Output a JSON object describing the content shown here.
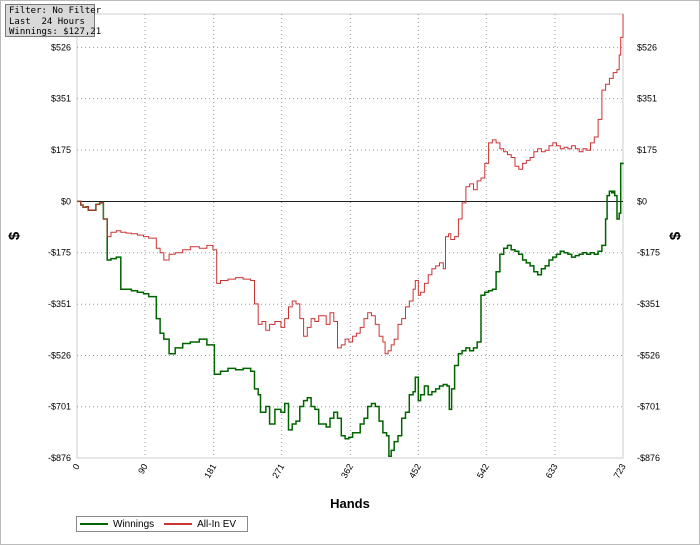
{
  "filter_box": {
    "line1": "Filter: No Filter",
    "line2": "Last  24 Hours",
    "line3": "Winnings: $127,21"
  },
  "chart_data": {
    "type": "line",
    "xlabel": "Hands",
    "ylabel": "$",
    "ylabel_right": "$",
    "xlim": [
      0,
      723
    ],
    "ylim": [
      -876,
      640
    ],
    "x_ticks": [
      0,
      90,
      181,
      271,
      362,
      452,
      542,
      633,
      723
    ],
    "y_ticks": [
      526,
      351,
      175,
      0,
      -175,
      -351,
      -526,
      -701,
      -876
    ],
    "y_tick_labels": [
      "$526",
      "$351",
      "$175",
      "$0",
      "-$175",
      "-$351",
      "-$526",
      "-$701",
      "-$876"
    ],
    "grid": true,
    "zero_line": true,
    "legend_position": "bottom-left",
    "series": [
      {
        "name": "Winnings",
        "color": "#006400",
        "points": [
          [
            0,
            0
          ],
          [
            5,
            -12
          ],
          [
            8,
            -20
          ],
          [
            12,
            -18
          ],
          [
            15,
            -30
          ],
          [
            20,
            -30
          ],
          [
            25,
            -10
          ],
          [
            30,
            -5
          ],
          [
            35,
            -60
          ],
          [
            40,
            -200
          ],
          [
            45,
            -195
          ],
          [
            52,
            -190
          ],
          [
            58,
            -300
          ],
          [
            65,
            -300
          ],
          [
            72,
            -305
          ],
          [
            80,
            -310
          ],
          [
            88,
            -315
          ],
          [
            95,
            -325
          ],
          [
            105,
            -400
          ],
          [
            110,
            -450
          ],
          [
            115,
            -470
          ],
          [
            122,
            -520
          ],
          [
            130,
            -500
          ],
          [
            140,
            -485
          ],
          [
            150,
            -480
          ],
          [
            162,
            -470
          ],
          [
            172,
            -490
          ],
          [
            182,
            -590
          ],
          [
            190,
            -580
          ],
          [
            200,
            -570
          ],
          [
            210,
            -575
          ],
          [
            220,
            -570
          ],
          [
            230,
            -580
          ],
          [
            235,
            -640
          ],
          [
            240,
            -660
          ],
          [
            243,
            -720
          ],
          [
            250,
            -700
          ],
          [
            255,
            -760
          ],
          [
            262,
            -710
          ],
          [
            270,
            -720
          ],
          [
            275,
            -690
          ],
          [
            280,
            -780
          ],
          [
            285,
            -760
          ],
          [
            290,
            -750
          ],
          [
            295,
            -700
          ],
          [
            300,
            -680
          ],
          [
            305,
            -670
          ],
          [
            310,
            -700
          ],
          [
            315,
            -710
          ],
          [
            320,
            -760
          ],
          [
            330,
            -770
          ],
          [
            335,
            -740
          ],
          [
            340,
            -720
          ],
          [
            345,
            -740
          ],
          [
            350,
            -800
          ],
          [
            355,
            -810
          ],
          [
            360,
            -805
          ],
          [
            365,
            -790
          ],
          [
            370,
            -790
          ],
          [
            375,
            -760
          ],
          [
            380,
            -740
          ],
          [
            385,
            -700
          ],
          [
            390,
            -690
          ],
          [
            395,
            -700
          ],
          [
            400,
            -750
          ],
          [
            405,
            -790
          ],
          [
            410,
            -800
          ],
          [
            413,
            -870
          ],
          [
            416,
            -850
          ],
          [
            420,
            -820
          ],
          [
            425,
            -800
          ],
          [
            430,
            -740
          ],
          [
            435,
            -720
          ],
          [
            440,
            -660
          ],
          [
            445,
            -650
          ],
          [
            448,
            -600
          ],
          [
            452,
            -680
          ],
          [
            455,
            -660
          ],
          [
            460,
            -630
          ],
          [
            465,
            -660
          ],
          [
            470,
            -650
          ],
          [
            475,
            -640
          ],
          [
            480,
            -630
          ],
          [
            485,
            -625
          ],
          [
            490,
            -630
          ],
          [
            493,
            -710
          ],
          [
            496,
            -640
          ],
          [
            500,
            -560
          ],
          [
            505,
            -520
          ],
          [
            510,
            -510
          ],
          [
            515,
            -500
          ],
          [
            520,
            -510
          ],
          [
            525,
            -500
          ],
          [
            530,
            -480
          ],
          [
            535,
            -320
          ],
          [
            540,
            -310
          ],
          [
            545,
            -305
          ],
          [
            550,
            -300
          ],
          [
            555,
            -240
          ],
          [
            560,
            -180
          ],
          [
            565,
            -160
          ],
          [
            570,
            -150
          ],
          [
            575,
            -165
          ],
          [
            580,
            -170
          ],
          [
            585,
            -180
          ],
          [
            590,
            -200
          ],
          [
            595,
            -210
          ],
          [
            600,
            -220
          ],
          [
            605,
            -240
          ],
          [
            610,
            -250
          ],
          [
            615,
            -230
          ],
          [
            620,
            -220
          ],
          [
            625,
            -200
          ],
          [
            630,
            -190
          ],
          [
            635,
            -180
          ],
          [
            640,
            -170
          ],
          [
            645,
            -175
          ],
          [
            650,
            -180
          ],
          [
            655,
            -190
          ],
          [
            660,
            -185
          ],
          [
            665,
            -180
          ],
          [
            670,
            -175
          ],
          [
            675,
            -180
          ],
          [
            680,
            -175
          ],
          [
            685,
            -180
          ],
          [
            690,
            -170
          ],
          [
            695,
            -150
          ],
          [
            700,
            -60
          ],
          [
            702,
            20
          ],
          [
            705,
            35
          ],
          [
            708,
            30
          ],
          [
            710,
            35
          ],
          [
            712,
            20
          ],
          [
            715,
            -60
          ],
          [
            718,
            -40
          ],
          [
            720,
            130
          ],
          [
            723,
            127
          ]
        ]
      },
      {
        "name": "All-In EV",
        "color": "#cc3333",
        "points": [
          [
            0,
            0
          ],
          [
            5,
            -12
          ],
          [
            8,
            -20
          ],
          [
            12,
            -18
          ],
          [
            15,
            -30
          ],
          [
            20,
            -30
          ],
          [
            25,
            -10
          ],
          [
            30,
            -5
          ],
          [
            35,
            -60
          ],
          [
            40,
            -120
          ],
          [
            45,
            -105
          ],
          [
            52,
            -100
          ],
          [
            58,
            -105
          ],
          [
            65,
            -108
          ],
          [
            72,
            -110
          ],
          [
            80,
            -115
          ],
          [
            88,
            -120
          ],
          [
            95,
            -125
          ],
          [
            105,
            -160
          ],
          [
            110,
            -175
          ],
          [
            115,
            -200
          ],
          [
            122,
            -180
          ],
          [
            130,
            -175
          ],
          [
            140,
            -165
          ],
          [
            150,
            -155
          ],
          [
            162,
            -160
          ],
          [
            172,
            -150
          ],
          [
            180,
            -165
          ],
          [
            185,
            -280
          ],
          [
            190,
            -270
          ],
          [
            200,
            -265
          ],
          [
            210,
            -260
          ],
          [
            220,
            -265
          ],
          [
            230,
            -270
          ],
          [
            235,
            -350
          ],
          [
            240,
            -420
          ],
          [
            245,
            -410
          ],
          [
            250,
            -440
          ],
          [
            255,
            -420
          ],
          [
            262,
            -410
          ],
          [
            270,
            -430
          ],
          [
            275,
            -400
          ],
          [
            280,
            -360
          ],
          [
            285,
            -340
          ],
          [
            290,
            -350
          ],
          [
            295,
            -400
          ],
          [
            300,
            -460
          ],
          [
            305,
            -430
          ],
          [
            310,
            -400
          ],
          [
            315,
            -410
          ],
          [
            320,
            -390
          ],
          [
            330,
            -420
          ],
          [
            335,
            -380
          ],
          [
            340,
            -410
          ],
          [
            345,
            -500
          ],
          [
            350,
            -490
          ],
          [
            355,
            -470
          ],
          [
            360,
            -480
          ],
          [
            365,
            -460
          ],
          [
            370,
            -450
          ],
          [
            375,
            -430
          ],
          [
            380,
            -400
          ],
          [
            385,
            -380
          ],
          [
            390,
            -390
          ],
          [
            395,
            -420
          ],
          [
            400,
            -460
          ],
          [
            405,
            -480
          ],
          [
            408,
            -520
          ],
          [
            412,
            -510
          ],
          [
            416,
            -490
          ],
          [
            420,
            -470
          ],
          [
            425,
            -420
          ],
          [
            430,
            -400
          ],
          [
            435,
            -360
          ],
          [
            440,
            -340
          ],
          [
            445,
            -300
          ],
          [
            448,
            -270
          ],
          [
            452,
            -320
          ],
          [
            455,
            -310
          ],
          [
            460,
            -280
          ],
          [
            465,
            -250
          ],
          [
            470,
            -230
          ],
          [
            475,
            -220
          ],
          [
            480,
            -210
          ],
          [
            485,
            -230
          ],
          [
            488,
            -120
          ],
          [
            492,
            -110
          ],
          [
            495,
            -130
          ],
          [
            500,
            -120
          ],
          [
            505,
            -60
          ],
          [
            510,
            -5
          ],
          [
            515,
            50
          ],
          [
            520,
            60
          ],
          [
            525,
            40
          ],
          [
            530,
            70
          ],
          [
            535,
            80
          ],
          [
            540,
            130
          ],
          [
            545,
            200
          ],
          [
            550,
            210
          ],
          [
            555,
            200
          ],
          [
            560,
            180
          ],
          [
            565,
            170
          ],
          [
            570,
            160
          ],
          [
            575,
            150
          ],
          [
            580,
            120
          ],
          [
            585,
            110
          ],
          [
            590,
            130
          ],
          [
            595,
            140
          ],
          [
            600,
            150
          ],
          [
            605,
            170
          ],
          [
            610,
            180
          ],
          [
            615,
            170
          ],
          [
            620,
            175
          ],
          [
            625,
            190
          ],
          [
            630,
            200
          ],
          [
            635,
            190
          ],
          [
            640,
            180
          ],
          [
            645,
            185
          ],
          [
            650,
            180
          ],
          [
            655,
            190
          ],
          [
            660,
            180
          ],
          [
            665,
            170
          ],
          [
            670,
            180
          ],
          [
            675,
            175
          ],
          [
            680,
            200
          ],
          [
            685,
            220
          ],
          [
            690,
            280
          ],
          [
            695,
            380
          ],
          [
            700,
            400
          ],
          [
            705,
            420
          ],
          [
            710,
            440
          ],
          [
            715,
            450
          ],
          [
            718,
            500
          ],
          [
            720,
            560
          ],
          [
            723,
            640
          ]
        ]
      }
    ]
  },
  "legend": {
    "winnings_label": "Winnings",
    "ev_label": "All-In EV",
    "winnings_color": "#006400",
    "ev_color": "#cc3333"
  }
}
